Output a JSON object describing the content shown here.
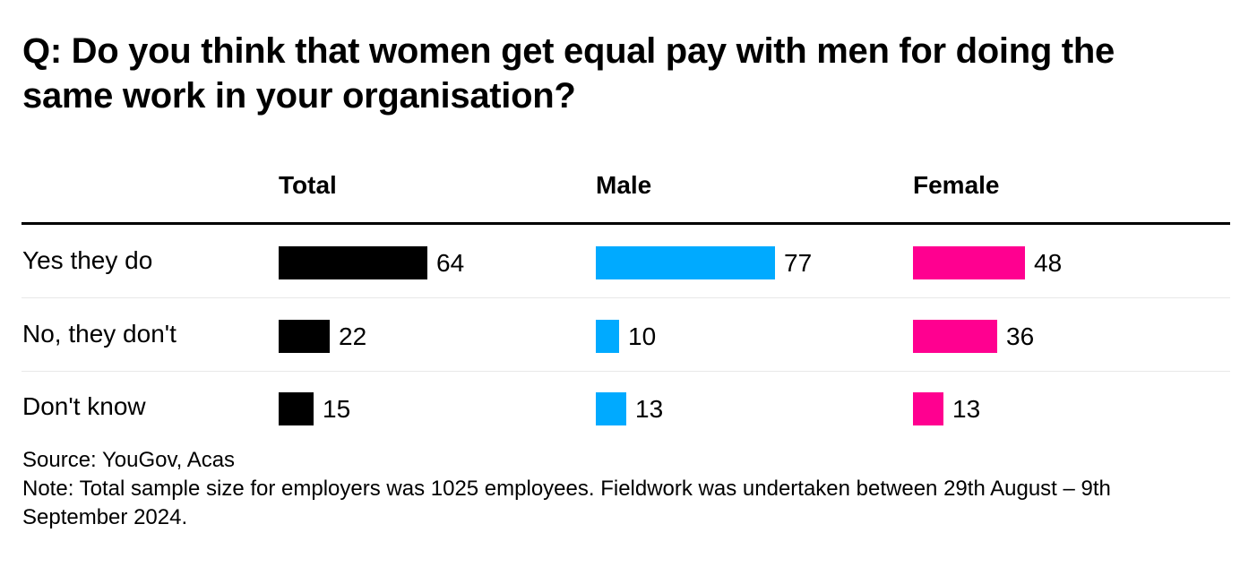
{
  "chart_data": {
    "type": "bar",
    "title": "Q: Do you think that women get equal pay with men for doing the same work in your organisation?",
    "categories": [
      "Yes they do",
      "No, they don't",
      "Don't know"
    ],
    "series": [
      {
        "name": "Total",
        "values": [
          64,
          22,
          15
        ],
        "color": "#000000"
      },
      {
        "name": "Male",
        "values": [
          77,
          10,
          13
        ],
        "color": "#00aaff"
      },
      {
        "name": "Female",
        "values": [
          48,
          36,
          13
        ],
        "color": "#ff0090"
      }
    ],
    "source": "Source: YouGov, Acas",
    "note": "Note: Total sample size for employers was 1025 employees. Fieldwork was undertaken between 29th August – 9th September 2024.",
    "grid": false,
    "legend": "none"
  }
}
